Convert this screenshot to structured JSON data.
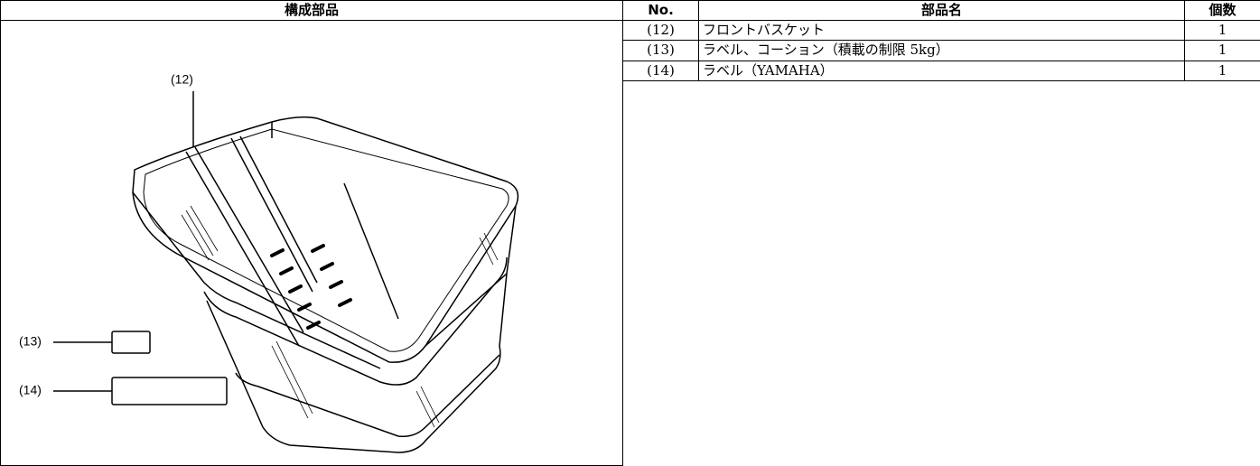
{
  "table": {
    "headers": [
      "構成部品",
      "No.",
      "部品名",
      "個数"
    ],
    "rows": [
      [
        "(12)",
        "フロントバスケット",
        1
      ],
      [
        "(13)",
        "ラベル、コーション（積載の制限 5kg）",
        1
      ],
      [
        "(14)",
        "ラベル（YAMAHA）",
        1
      ]
    ]
  },
  "illustration": {
    "callouts": [
      "(12)",
      "(13)",
      "(14)"
    ]
  }
}
